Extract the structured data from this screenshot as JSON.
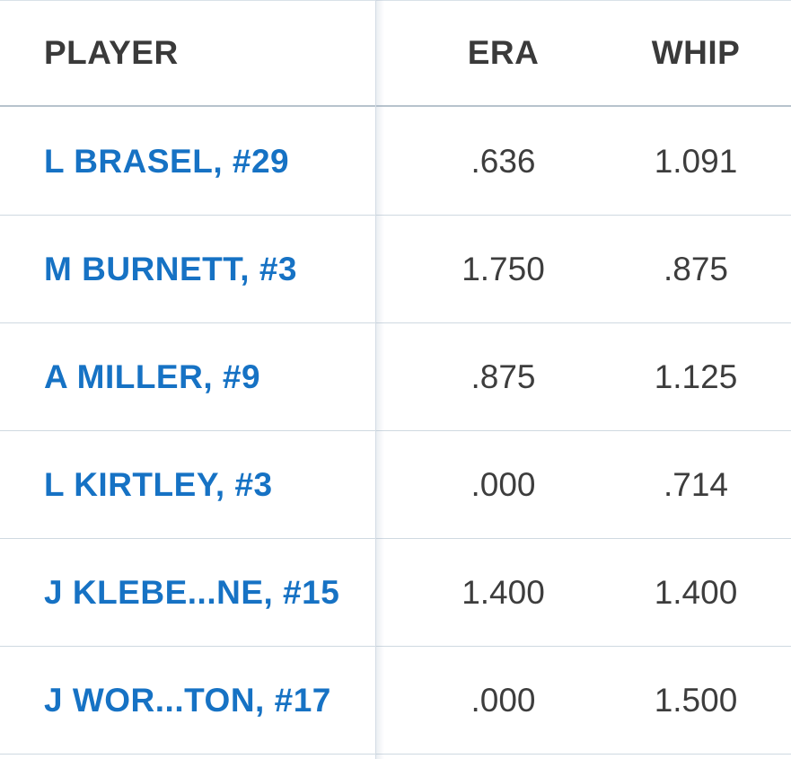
{
  "table": {
    "headers": {
      "player": "PLAYER",
      "era": "ERA",
      "whip": "WHIP"
    },
    "rows": [
      {
        "player": "L BRASEL, #29",
        "era": ".636",
        "whip": "1.091"
      },
      {
        "player": "M BURNETT, #3",
        "era": "1.750",
        "whip": ".875"
      },
      {
        "player": "A MILLER, #9",
        "era": ".875",
        "whip": "1.125"
      },
      {
        "player": "L KIRTLEY, #3",
        "era": ".000",
        "whip": ".714"
      },
      {
        "player": "J KLEBE...NE, #15",
        "era": "1.400",
        "whip": "1.400"
      },
      {
        "player": "J WOR...TON, #17",
        "era": ".000",
        "whip": "1.500"
      }
    ]
  },
  "colors": {
    "link": "#1672c4",
    "header_text": "#3a3a3a",
    "stat_text": "#3d3d3d",
    "divider": "#cfd9e1"
  }
}
